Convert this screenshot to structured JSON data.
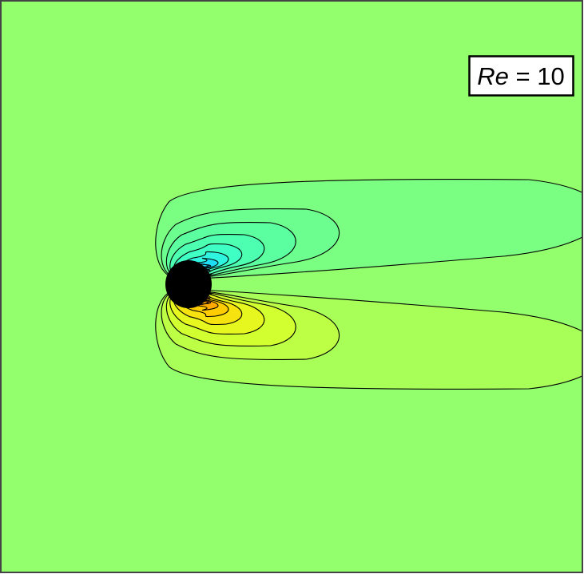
{
  "annotation": {
    "symbol": "Re",
    "equals": " = ",
    "value": "10"
  },
  "colors": {
    "background": "#93ff6d",
    "frame": "#444444",
    "contour_line": "#000000",
    "cylinder": "#000000",
    "upper_lobe_levels": [
      "#7aff82",
      "#6cff8f",
      "#5bff9f",
      "#4dffb0",
      "#3fffc4",
      "#2ff5e0",
      "#1fdcf5",
      "#12b2ff",
      "#1a6cff",
      "#3a2cff"
    ],
    "lower_lobe_levels": [
      "#a8ff58",
      "#bcff45",
      "#d2ff30",
      "#e6f61f",
      "#f5e20f",
      "#ffcc00",
      "#ffaa00",
      "#ff7e00",
      "#ff4400",
      "#e80000"
    ]
  }
}
